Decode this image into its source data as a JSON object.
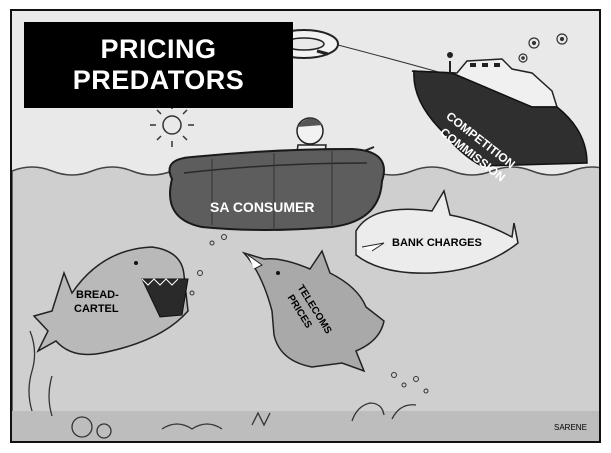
{
  "cartoon": {
    "title_line1": "PRICING",
    "title_line2": "PREDATORS",
    "labels": {
      "consumer": "SA CONSUMER",
      "ship_line1": "COMPETITION",
      "ship_line2": "COMMISSION",
      "bank": "BANK CHARGES",
      "bread_line1": "BREAD-",
      "bread_line2": "CARTEL",
      "telecoms_line1": "TELECOMS",
      "telecoms_line2": "PRICES",
      "signature": "SARENE"
    }
  },
  "colors": {
    "sky": "#e6e6e6",
    "water": "#c9c9c9",
    "dinghy": "#5a5a5a",
    "ship": "#2a2a2a",
    "title_bg": "#000000",
    "title_text": "#ffffff"
  },
  "icons": [
    "sun-icon",
    "lifebuoy-icon",
    "flower-icon",
    "shark-icon",
    "ship-icon",
    "dinghy-icon"
  ]
}
